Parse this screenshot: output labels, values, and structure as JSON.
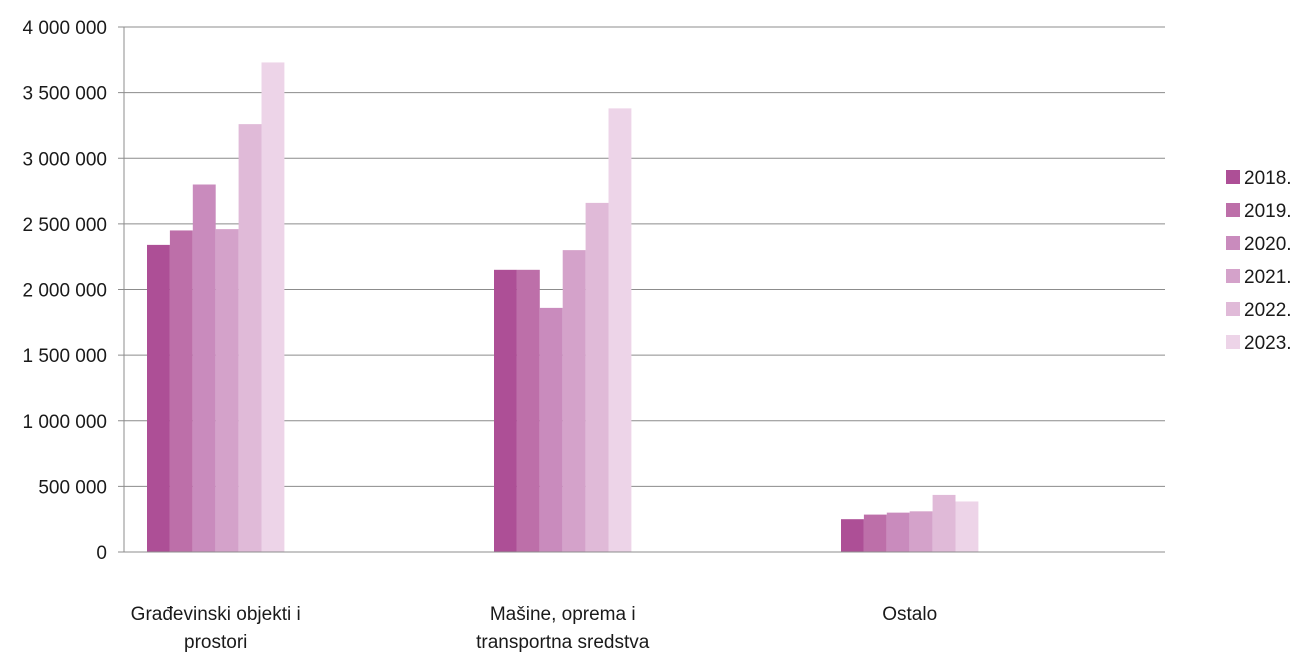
{
  "chart_data": {
    "type": "bar",
    "title": "",
    "xlabel": "",
    "ylabel": "",
    "ylim": [
      0,
      4000000
    ],
    "yticks": [
      0,
      500000,
      1000000,
      1500000,
      2000000,
      2500000,
      3000000,
      3500000,
      4000000
    ],
    "ytick_labels": [
      "0",
      "500 000",
      "1 000 000",
      "1 500 000",
      "2 000 000",
      "2 500 000",
      "3 000 000",
      "3 500 000",
      "4 000 000"
    ],
    "grid": true,
    "legend_position": "right",
    "categories": [
      [
        "Građevinski objekti i",
        "prostori"
      ],
      [
        "Mašine, oprema i",
        "transportna sredstva"
      ],
      [
        "Ostalo"
      ]
    ],
    "series": [
      {
        "name": "2018.",
        "color": "#ad4f96",
        "values": [
          2340000,
          2150000,
          250000
        ]
      },
      {
        "name": "2019.",
        "color": "#bd6fa9",
        "values": [
          2450000,
          2150000,
          285000
        ]
      },
      {
        "name": "2020.",
        "color": "#c98bbd",
        "values": [
          2800000,
          1860000,
          300000
        ]
      },
      {
        "name": "2021.",
        "color": "#d4a2ca",
        "values": [
          2460000,
          2300000,
          310000
        ]
      },
      {
        "name": "2022.",
        "color": "#e0bad8",
        "values": [
          3260000,
          2660000,
          435000
        ]
      },
      {
        "name": "2023.",
        "color": "#edd4e8",
        "values": [
          3730000,
          3380000,
          385000
        ]
      }
    ]
  }
}
